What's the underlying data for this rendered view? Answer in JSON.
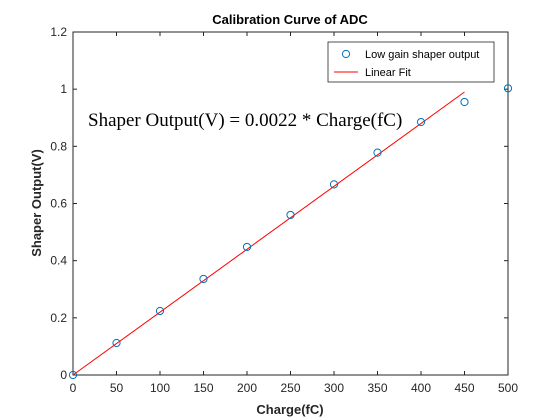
{
  "chart_data": {
    "type": "scatter",
    "title": "Calibration Curve of ADC",
    "xlabel": "Charge(fC)",
    "ylabel": "Shaper Output(V)",
    "xlim": [
      0,
      500
    ],
    "ylim": [
      0,
      1.2
    ],
    "xticks": [
      0,
      50,
      100,
      150,
      200,
      250,
      300,
      350,
      400,
      450,
      500
    ],
    "yticks": [
      0,
      0.2,
      0.4,
      0.6,
      0.8,
      1,
      1.2
    ],
    "xtick_labels": [
      "0",
      "50",
      "100",
      "150",
      "200",
      "250",
      "300",
      "350",
      "400",
      "450",
      "500"
    ],
    "ytick_labels": [
      "0",
      "0.2",
      "0.4",
      "0.6",
      "0.8",
      "1",
      "1.2"
    ],
    "grid": false,
    "legend_position": "top-right",
    "series": [
      {
        "name": "Low gain shaper output",
        "marker": "circle",
        "color": "#0072BD",
        "x": [
          0,
          50,
          100,
          150,
          200,
          250,
          300,
          350,
          400,
          450,
          500
        ],
        "y": [
          0,
          0.112,
          0.224,
          0.336,
          0.448,
          0.56,
          0.667,
          0.778,
          0.885,
          0.955,
          1.003
        ]
      },
      {
        "name": "Linear Fit",
        "style": "line",
        "color": "#FF0000",
        "x": [
          0,
          450
        ],
        "y": [
          0,
          0.99
        ]
      }
    ],
    "annotations": [
      {
        "text": "Shaper Output(V) = 0.0022 * Charge(fC)"
      }
    ]
  }
}
